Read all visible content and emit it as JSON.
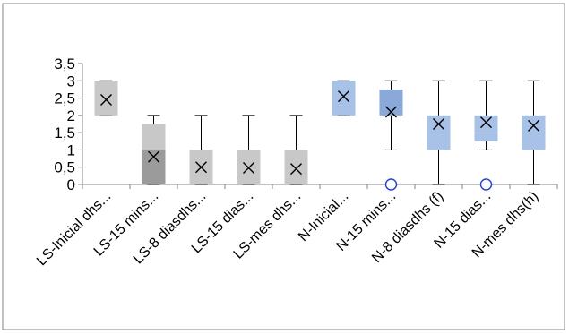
{
  "chart_data": {
    "type": "box",
    "categories": [
      "LS-Inicial dhs...",
      "LS-15 mins...",
      "LS-8 diasdhs...",
      "LS-15 dias...",
      "LS-mes dhs...",
      "N-Inicial...",
      "N-15 mins...",
      "N-8 diasdhs (f)",
      "N-15 dias...",
      "N-mes dhs(h)"
    ],
    "yticks": [
      "0",
      "0,5",
      "1",
      "1,5",
      "2",
      "2,5",
      "3",
      "3,5"
    ],
    "ylim": [
      0,
      3.5
    ],
    "grid": false,
    "legend": "none",
    "boxes": [
      {
        "min": 2,
        "q1": 2,
        "median": 2,
        "q3": 3,
        "max": 3,
        "mean": 2.45,
        "outliers": [],
        "color": "#c8c8c8",
        "lower_color": "#c8c8c8"
      },
      {
        "min": 0,
        "q1": 0,
        "median": 1,
        "q3": 1.75,
        "max": 2,
        "mean": 0.8,
        "outliers": [],
        "color": "#c8c8c8",
        "lower_color": "#9b9b9b"
      },
      {
        "min": 0,
        "q1": 0,
        "median": 0,
        "q3": 1,
        "max": 2,
        "mean": 0.5,
        "outliers": [],
        "color": "#c8c8c8",
        "lower_color": "#c8c8c8"
      },
      {
        "min": 0,
        "q1": 0,
        "median": 0,
        "q3": 1,
        "max": 2,
        "mean": 0.48,
        "outliers": [],
        "color": "#c8c8c8",
        "lower_color": "#c8c8c8"
      },
      {
        "min": 0,
        "q1": 0,
        "median": 0,
        "q3": 1,
        "max": 2,
        "mean": 0.45,
        "outliers": [],
        "color": "#c8c8c8",
        "lower_color": "#c8c8c8"
      },
      {
        "min": 2,
        "q1": 2,
        "median": 2,
        "q3": 3,
        "max": 3,
        "mean": 2.55,
        "outliers": [],
        "color": "#a7c2e6",
        "lower_color": "#a7c2e6"
      },
      {
        "min": 1,
        "q1": 2,
        "median": 2,
        "q3": 2.75,
        "max": 3,
        "mean": 2.1,
        "outliers": [
          0
        ],
        "color": "#8aa8d8",
        "lower_color": "#6f91c9"
      },
      {
        "min": 0,
        "q1": 1,
        "median": 1,
        "q3": 2,
        "max": 3,
        "mean": 1.75,
        "outliers": [],
        "color": "#a7c2e6",
        "lower_color": "#a7c2e6"
      },
      {
        "min": 1,
        "q1": 1.25,
        "median": 1.5,
        "q3": 2,
        "max": 3,
        "mean": 1.8,
        "outliers": [
          0
        ],
        "color": "#a7c2e6",
        "lower_color": "#a7c2e6"
      },
      {
        "min": 0,
        "q1": 1,
        "median": 1,
        "q3": 2,
        "max": 3,
        "mean": 1.7,
        "outliers": [],
        "color": "#a7c2e6",
        "lower_color": "#a7c2e6"
      }
    ]
  }
}
